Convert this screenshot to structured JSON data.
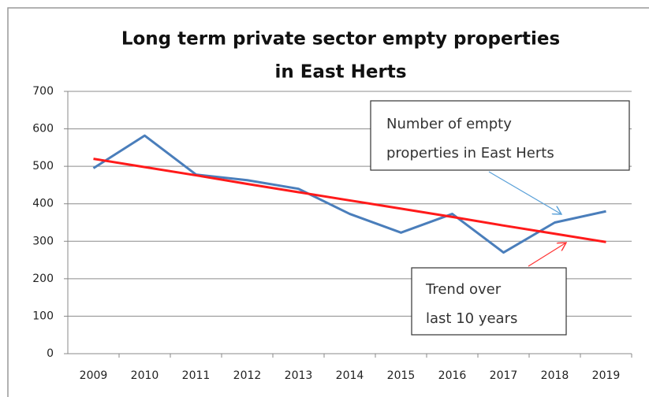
{
  "chart_data": {
    "type": "line",
    "title": [
      "Long term private sector empty properties",
      "in East Herts"
    ],
    "categories": [
      "2009",
      "2010",
      "2011",
      "2012",
      "2013",
      "2014",
      "2015",
      "2016",
      "2017",
      "2018",
      "2019"
    ],
    "series": [
      {
        "color": "#4a7ebb",
        "values": [
          495,
          582,
          478,
          463,
          440,
          373,
          323,
          373,
          270,
          350,
          380
        ]
      },
      {
        "color": "#ff1a1a",
        "values": [
          520,
          498,
          476,
          453,
          431,
          409,
          387,
          365,
          342,
          320,
          298
        ]
      }
    ],
    "ylim": [
      0,
      700
    ],
    "yticks": [
      0,
      100,
      200,
      300,
      400,
      500,
      600,
      700
    ],
    "grid": true,
    "annotations": [
      {
        "lines": [
          "Number of empty",
          "properties in East Herts"
        ]
      },
      {
        "lines": [
          "Trend over",
          "last 10 years"
        ]
      }
    ]
  }
}
